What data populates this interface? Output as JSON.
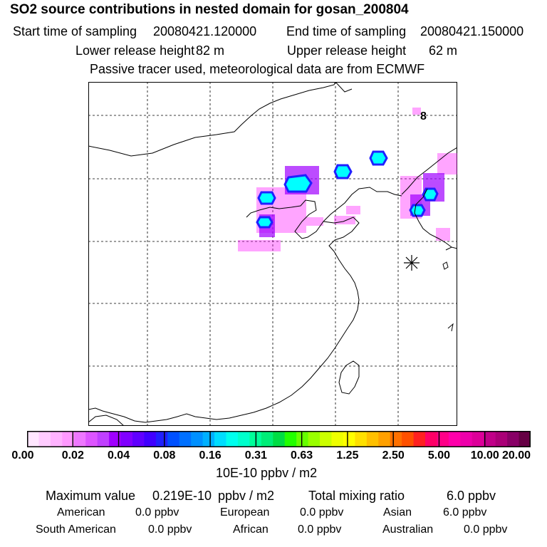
{
  "header": {
    "title": "SO2 source contributions in nested domain for gosan_200804",
    "start_label": "Start time of sampling",
    "start_value": "20080421.120000",
    "end_label": "End time of sampling",
    "end_value": "20080421.150000",
    "lower_label": "Lower release height",
    "lower_value": "82 m",
    "upper_label": "Upper release height",
    "upper_value": "62 m",
    "tracer_note": "Passive tracer used, meteorological data are from ECMWF"
  },
  "map": {
    "marker_label": "8",
    "receptor_symbol": "✳",
    "colors": {
      "low": "#ff00ff",
      "mid": "#8000ff",
      "high": "#00ffff",
      "outline": "#2020ff"
    }
  },
  "colorbar": {
    "colors": [
      "#ffe6ff",
      "#ffccff",
      "#ffb3ff",
      "#ff99ff",
      "#ee77ff",
      "#dd55ff",
      "#c040ff",
      "#a000ff",
      "#8000ff",
      "#6000ff",
      "#4000ff",
      "#2020ff",
      "#0050ff",
      "#0070ff",
      "#0090ff",
      "#00b0ff",
      "#00ddff",
      "#00ffee",
      "#00ffcc",
      "#00ff99",
      "#00ee77",
      "#00dd44",
      "#22ff00",
      "#66ff00",
      "#99ff00",
      "#ccff00",
      "#eeff00",
      "#ffff00",
      "#ffe000",
      "#ffc000",
      "#ffa000",
      "#ff7000",
      "#ff5000",
      "#ff2020",
      "#ff0066",
      "#ff0088",
      "#ff00aa",
      "#ee00aa",
      "#dd0099",
      "#c00088",
      "#aa0077",
      "#880066",
      "#660044"
    ],
    "ticks": [
      "0.00",
      "0.02",
      "0.04",
      "0.08",
      "0.16",
      "0.31",
      "0.63",
      "1.25",
      "2.50",
      "5.00",
      "10.00",
      "20.00"
    ],
    "units": "10E-10 ppbv / m2"
  },
  "summary": {
    "max_label": "Maximum value",
    "max_value": "0.219E-10",
    "max_unit": "ppbv / m2",
    "total_label": "Total mixing ratio",
    "total_value": "6.0 ppbv",
    "regions": [
      {
        "name": "American",
        "value": "0.0 ppbv"
      },
      {
        "name": "European",
        "value": "0.0 ppbv"
      },
      {
        "name": "Asian",
        "value": "6.0 ppbv"
      },
      {
        "name": "South American",
        "value": "0.0 ppbv"
      },
      {
        "name": "African",
        "value": "0.0 ppbv"
      },
      {
        "name": "Australian",
        "value": "0.0 ppbv"
      }
    ]
  }
}
